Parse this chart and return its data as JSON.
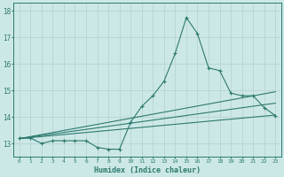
{
  "xlabel": "Humidex (Indice chaleur)",
  "bg_color": "#cce8e6",
  "grid_color": "#b8d4d2",
  "line_color": "#2d7a6e",
  "xlim": [
    -0.5,
    23.5
  ],
  "ylim": [
    12.5,
    18.3
  ],
  "xticks": [
    0,
    1,
    2,
    3,
    4,
    5,
    6,
    7,
    8,
    9,
    10,
    11,
    12,
    13,
    14,
    15,
    16,
    17,
    18,
    19,
    20,
    21,
    22,
    23
  ],
  "yticks": [
    13,
    14,
    15,
    16,
    17,
    18
  ],
  "series1_x": [
    0,
    1,
    2,
    3,
    4,
    5,
    6,
    7,
    8,
    9,
    10,
    11,
    12,
    13,
    14,
    15,
    16,
    17,
    18,
    19,
    20,
    21,
    22,
    23
  ],
  "series1_y": [
    13.2,
    13.2,
    13.0,
    13.1,
    13.1,
    13.1,
    13.1,
    12.85,
    12.78,
    12.78,
    13.8,
    14.4,
    14.8,
    15.35,
    16.4,
    17.75,
    17.15,
    15.85,
    15.75,
    14.9,
    14.8,
    14.8,
    14.35,
    14.05
  ],
  "series2_x": [
    0,
    23
  ],
  "series2_y": [
    13.18,
    14.07
  ],
  "series3_x": [
    0,
    23
  ],
  "series3_y": [
    13.18,
    14.52
  ],
  "series4_x": [
    0,
    23
  ],
  "series4_y": [
    13.18,
    14.95
  ]
}
